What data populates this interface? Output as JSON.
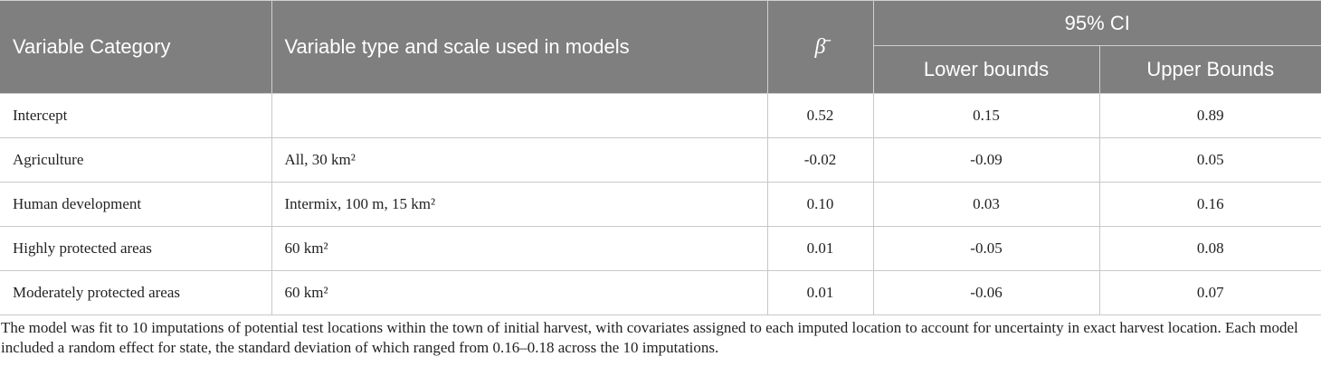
{
  "table": {
    "header": {
      "columns": [
        "Variable Category",
        "Variable type and scale used in models",
        "β̄"
      ],
      "group": "95% CI",
      "subcolumns": [
        "Lower bounds",
        "Upper Bounds"
      ]
    },
    "rows": [
      [
        "Intercept",
        "",
        "0.52",
        "0.15",
        "0.89"
      ],
      [
        "Agriculture",
        "All, 30 km²",
        "-0.02",
        "-0.09",
        "0.05"
      ],
      [
        "Human development",
        "Intermix, 100 m, 15 km²",
        "0.10",
        "0.03",
        "0.16"
      ],
      [
        "Highly protected areas",
        "60 km²",
        "0.01",
        "-0.05",
        "0.08"
      ],
      [
        "Moderately protected areas",
        "60 km²",
        "0.01",
        "-0.06",
        "0.07"
      ]
    ]
  },
  "footnote": "The model was fit to 10 imputations of potential test locations within the town of initial harvest, with covariates assigned to each imputed location to account for uncertainty in exact harvest location. Each model included a random effect for state, the standard deviation of which ranged from 0.16–0.18 across the 10 imputations."
}
